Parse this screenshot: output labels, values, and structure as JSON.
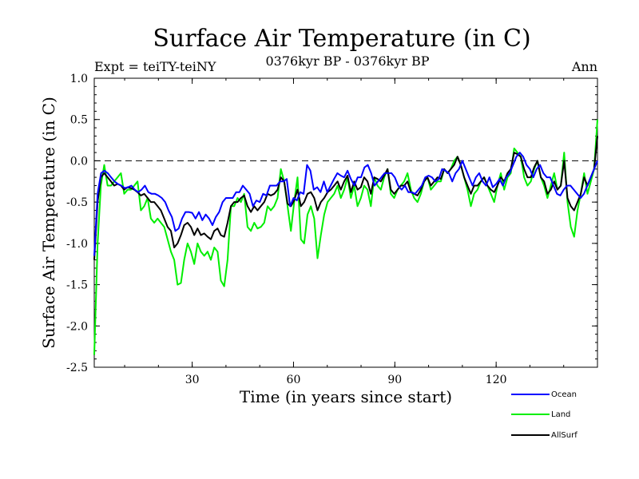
{
  "chart_data": {
    "type": "line",
    "title": "Surface Air Temperature (in C)",
    "subtitle": "0376kyr BP - 0376kyr BP",
    "left_label": "Expt = teiTY-teiNY",
    "right_label": "Ann",
    "xlabel": "Time (in years since start)",
    "ylabel": "Surface Air Temperature (in C)",
    "xlim": [
      1,
      150
    ],
    "ylim": [
      -2.5,
      1.0
    ],
    "xticks": [
      30,
      60,
      90,
      120
    ],
    "yticks": [
      "1.0",
      "0.5",
      "0.0",
      "-0.5",
      "-1.0",
      "-1.5",
      "-2.0",
      "-2.5"
    ],
    "reference_line": 0.0,
    "series": [
      {
        "name": "Ocean",
        "color": "#0000ff",
        "values": [
          -1.15,
          -0.4,
          -0.15,
          -0.12,
          -0.15,
          -0.2,
          -0.25,
          -0.28,
          -0.3,
          -0.33,
          -0.32,
          -0.3,
          -0.35,
          -0.38,
          -0.35,
          -0.3,
          -0.38,
          -0.4,
          -0.4,
          -0.42,
          -0.45,
          -0.5,
          -0.6,
          -0.68,
          -0.85,
          -0.82,
          -0.7,
          -0.62,
          -0.62,
          -0.63,
          -0.7,
          -0.62,
          -0.72,
          -0.65,
          -0.7,
          -0.78,
          -0.68,
          -0.62,
          -0.5,
          -0.45,
          -0.45,
          -0.45,
          -0.38,
          -0.38,
          -0.3,
          -0.35,
          -0.4,
          -0.55,
          -0.48,
          -0.5,
          -0.4,
          -0.42,
          -0.3,
          -0.3,
          -0.3,
          -0.25,
          -0.25,
          -0.22,
          -0.55,
          -0.45,
          -0.48,
          -0.38,
          -0.4,
          -0.05,
          -0.12,
          -0.35,
          -0.32,
          -0.38,
          -0.25,
          -0.38,
          -0.3,
          -0.22,
          -0.15,
          -0.18,
          -0.2,
          -0.12,
          -0.22,
          -0.3,
          -0.2,
          -0.2,
          -0.08,
          -0.05,
          -0.15,
          -0.3,
          -0.25,
          -0.2,
          -0.15,
          -0.15,
          -0.15,
          -0.2,
          -0.3,
          -0.35,
          -0.3,
          -0.38,
          -0.38,
          -0.4,
          -0.35,
          -0.3,
          -0.2,
          -0.18,
          -0.2,
          -0.25,
          -0.22,
          -0.1,
          -0.12,
          -0.15,
          -0.25,
          -0.15,
          -0.1,
          0.0,
          -0.1,
          -0.2,
          -0.3,
          -0.2,
          -0.15,
          -0.25,
          -0.3,
          -0.2,
          -0.32,
          -0.28,
          -0.22,
          -0.3,
          -0.2,
          -0.15,
          -0.05,
          0.05,
          0.1,
          0.05,
          -0.05,
          -0.1,
          -0.2,
          -0.1,
          -0.05,
          -0.15,
          -0.2,
          -0.2,
          -0.3,
          -0.4,
          -0.42,
          -0.35,
          -0.3,
          -0.3,
          -0.35,
          -0.4,
          -0.45,
          -0.4,
          -0.3,
          -0.2,
          -0.1,
          0.0
        ]
      },
      {
        "name": "Land",
        "color": "#00ee00",
        "values": [
          -2.35,
          -1.0,
          -0.3,
          -0.05,
          -0.3,
          -0.3,
          -0.25,
          -0.2,
          -0.15,
          -0.4,
          -0.35,
          -0.35,
          -0.3,
          -0.25,
          -0.6,
          -0.55,
          -0.45,
          -0.7,
          -0.75,
          -0.7,
          -0.75,
          -0.8,
          -0.95,
          -1.1,
          -1.2,
          -1.5,
          -1.48,
          -1.2,
          -1.0,
          -1.1,
          -1.25,
          -1.0,
          -1.1,
          -1.15,
          -1.1,
          -1.2,
          -1.05,
          -1.1,
          -1.45,
          -1.52,
          -1.2,
          -0.55,
          -0.55,
          -0.45,
          -0.5,
          -0.4,
          -0.8,
          -0.85,
          -0.75,
          -0.82,
          -0.8,
          -0.75,
          -0.55,
          -0.6,
          -0.55,
          -0.45,
          -0.1,
          -0.25,
          -0.55,
          -0.85,
          -0.5,
          -0.2,
          -0.95,
          -1.0,
          -0.65,
          -0.55,
          -0.7,
          -1.18,
          -0.9,
          -0.65,
          -0.5,
          -0.45,
          -0.4,
          -0.3,
          -0.45,
          -0.35,
          -0.2,
          -0.45,
          -0.3,
          -0.55,
          -0.45,
          -0.3,
          -0.35,
          -0.55,
          -0.2,
          -0.3,
          -0.35,
          -0.2,
          -0.1,
          -0.4,
          -0.45,
          -0.35,
          -0.3,
          -0.25,
          -0.15,
          -0.35,
          -0.45,
          -0.5,
          -0.4,
          -0.25,
          -0.2,
          -0.35,
          -0.3,
          -0.25,
          -0.25,
          -0.1,
          -0.15,
          -0.1,
          0.0,
          0.05,
          -0.05,
          -0.2,
          -0.35,
          -0.55,
          -0.4,
          -0.35,
          -0.25,
          -0.2,
          -0.3,
          -0.4,
          -0.5,
          -0.3,
          -0.15,
          -0.35,
          -0.2,
          -0.15,
          0.15,
          0.1,
          0.05,
          -0.2,
          -0.3,
          -0.25,
          -0.1,
          0.0,
          -0.2,
          -0.3,
          -0.45,
          -0.3,
          -0.15,
          -0.35,
          -0.3,
          0.1,
          -0.5,
          -0.8,
          -0.92,
          -0.6,
          -0.4,
          -0.15,
          -0.4,
          -0.25,
          -0.1,
          0.5
        ]
      },
      {
        "name": "AllSurf",
        "color": "#000000",
        "values": [
          -1.2,
          -0.5,
          -0.2,
          -0.15,
          -0.2,
          -0.25,
          -0.3,
          -0.28,
          -0.3,
          -0.35,
          -0.32,
          -0.33,
          -0.35,
          -0.38,
          -0.42,
          -0.4,
          -0.45,
          -0.5,
          -0.5,
          -0.55,
          -0.6,
          -0.7,
          -0.8,
          -0.85,
          -1.05,
          -1.0,
          -0.9,
          -0.78,
          -0.75,
          -0.8,
          -0.9,
          -0.82,
          -0.9,
          -0.88,
          -0.92,
          -0.95,
          -0.85,
          -0.82,
          -0.9,
          -0.92,
          -0.75,
          -0.55,
          -0.5,
          -0.5,
          -0.45,
          -0.42,
          -0.55,
          -0.62,
          -0.55,
          -0.6,
          -0.55,
          -0.5,
          -0.4,
          -0.42,
          -0.4,
          -0.35,
          -0.2,
          -0.25,
          -0.52,
          -0.55,
          -0.48,
          -0.35,
          -0.55,
          -0.5,
          -0.4,
          -0.38,
          -0.45,
          -0.6,
          -0.5,
          -0.45,
          -0.38,
          -0.35,
          -0.3,
          -0.25,
          -0.35,
          -0.25,
          -0.18,
          -0.38,
          -0.25,
          -0.35,
          -0.32,
          -0.2,
          -0.25,
          -0.4,
          -0.2,
          -0.22,
          -0.25,
          -0.18,
          -0.1,
          -0.35,
          -0.4,
          -0.35,
          -0.3,
          -0.3,
          -0.25,
          -0.38,
          -0.4,
          -0.42,
          -0.35,
          -0.25,
          -0.2,
          -0.3,
          -0.25,
          -0.2,
          -0.22,
          -0.1,
          -0.15,
          -0.1,
          -0.05,
          0.05,
          -0.05,
          -0.2,
          -0.3,
          -0.4,
          -0.3,
          -0.3,
          -0.25,
          -0.2,
          -0.3,
          -0.35,
          -0.38,
          -0.3,
          -0.2,
          -0.25,
          -0.15,
          -0.1,
          0.1,
          0.08,
          0.05,
          -0.1,
          -0.2,
          -0.2,
          -0.08,
          0.0,
          -0.2,
          -0.25,
          -0.4,
          -0.35,
          -0.25,
          -0.35,
          -0.3,
          0.0,
          -0.45,
          -0.55,
          -0.6,
          -0.5,
          -0.4,
          -0.2,
          -0.3,
          -0.2,
          -0.1,
          0.3
        ]
      }
    ],
    "legend": {
      "placement": "bottom-right",
      "entries": [
        "Ocean",
        "Land",
        "AllSurf"
      ]
    }
  }
}
